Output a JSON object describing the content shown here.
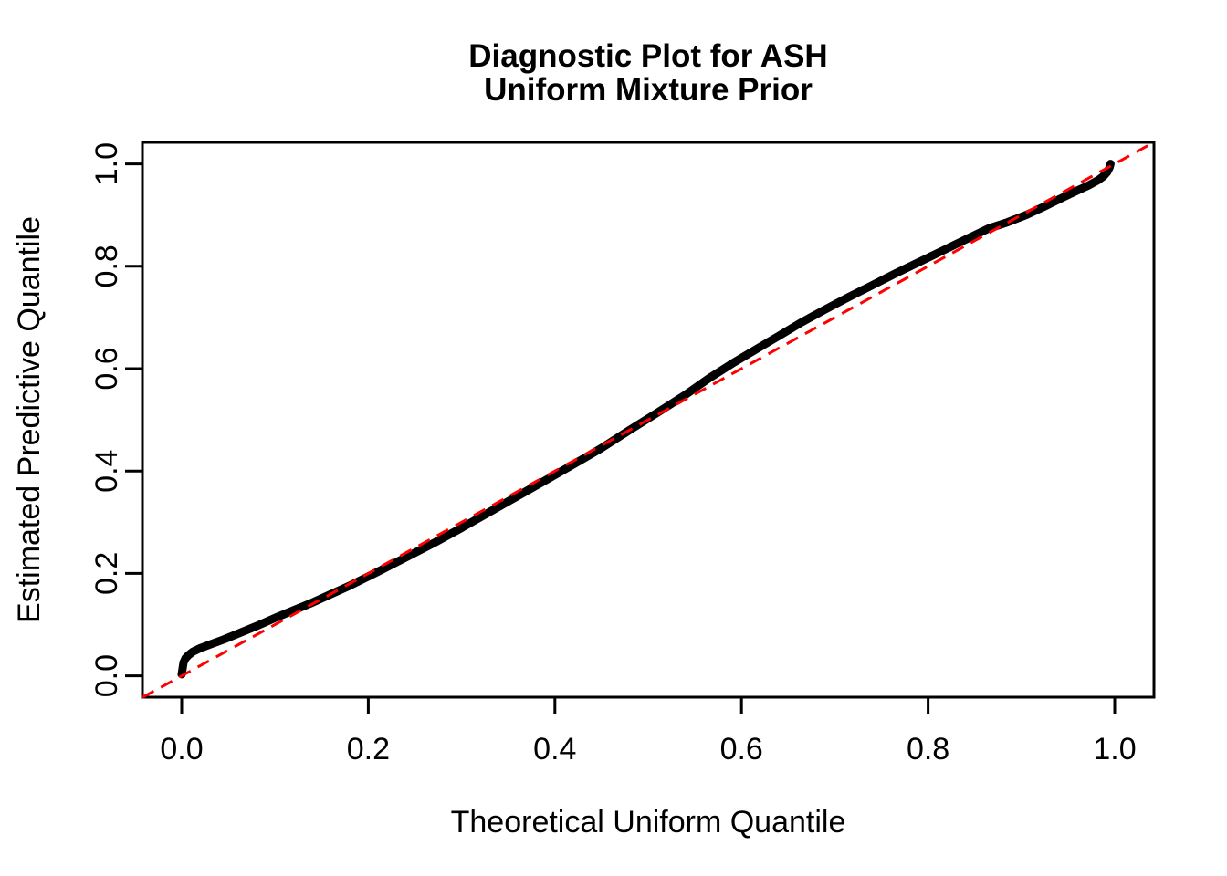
{
  "title": {
    "line1": "Diagnostic Plot for ASH",
    "line2": "Uniform Mixture Prior"
  },
  "axes": {
    "x_label": "Theoretical Uniform Quantile",
    "y_label": "Estimated Predictive Quantile",
    "x_tick_labels": [
      "0.0",
      "0.2",
      "0.4",
      "0.6",
      "0.8",
      "1.0"
    ],
    "y_tick_labels": [
      "0.0",
      "0.2",
      "0.4",
      "0.6",
      "0.8",
      "1.0"
    ]
  },
  "colors": {
    "curve": "#000000",
    "reference_line": "#FF0000",
    "frame": "#000000",
    "background": "#FFFFFF"
  },
  "chart_data": {
    "type": "line",
    "title": "Diagnostic Plot for ASH\nUniform Mixture Prior",
    "xlabel": "Theoretical Uniform Quantile",
    "ylabel": "Estimated Predictive Quantile",
    "xlim": [
      -0.042,
      1.042
    ],
    "ylim": [
      -0.042,
      1.042
    ],
    "x_ticks": [
      0.0,
      0.2,
      0.4,
      0.6,
      0.8,
      1.0
    ],
    "y_ticks": [
      0.0,
      0.2,
      0.4,
      0.6,
      0.8,
      1.0
    ],
    "grid": false,
    "legend_position": "none",
    "series": [
      {
        "name": "estimated-predictive-quantile-curve",
        "style": "solid",
        "color": "#000000",
        "line_width": 9,
        "points": [
          [
            0.0,
            0.003
          ],
          [
            0.001,
            0.014
          ],
          [
            0.002,
            0.026
          ],
          [
            0.004,
            0.034
          ],
          [
            0.007,
            0.04
          ],
          [
            0.012,
            0.047
          ],
          [
            0.02,
            0.054
          ],
          [
            0.03,
            0.061
          ],
          [
            0.045,
            0.071
          ],
          [
            0.06,
            0.082
          ],
          [
            0.08,
            0.097
          ],
          [
            0.1,
            0.113
          ],
          [
            0.12,
            0.128
          ],
          [
            0.14,
            0.143
          ],
          [
            0.157,
            0.157
          ],
          [
            0.18,
            0.176
          ],
          [
            0.21,
            0.203
          ],
          [
            0.24,
            0.231
          ],
          [
            0.27,
            0.259
          ],
          [
            0.3,
            0.289
          ],
          [
            0.33,
            0.32
          ],
          [
            0.36,
            0.351
          ],
          [
            0.39,
            0.382
          ],
          [
            0.42,
            0.413
          ],
          [
            0.45,
            0.445
          ],
          [
            0.48,
            0.48
          ],
          [
            0.51,
            0.514
          ],
          [
            0.54,
            0.549
          ],
          [
            0.565,
            0.581
          ],
          [
            0.59,
            0.61
          ],
          [
            0.615,
            0.637
          ],
          [
            0.64,
            0.664
          ],
          [
            0.665,
            0.691
          ],
          [
            0.69,
            0.716
          ],
          [
            0.715,
            0.74
          ],
          [
            0.74,
            0.763
          ],
          [
            0.765,
            0.786
          ],
          [
            0.79,
            0.808
          ],
          [
            0.815,
            0.83
          ],
          [
            0.84,
            0.852
          ],
          [
            0.865,
            0.874
          ],
          [
            0.885,
            0.886
          ],
          [
            0.905,
            0.9
          ],
          [
            0.925,
            0.917
          ],
          [
            0.945,
            0.935
          ],
          [
            0.96,
            0.948
          ],
          [
            0.972,
            0.958
          ],
          [
            0.982,
            0.968
          ],
          [
            0.988,
            0.976
          ],
          [
            0.992,
            0.984
          ],
          [
            0.9945,
            0.993
          ],
          [
            0.9955,
            1.0
          ]
        ]
      },
      {
        "name": "identity-reference-line",
        "style": "dashed",
        "color": "#FF0000",
        "line_width": 3,
        "points": [
          [
            -0.042,
            -0.042
          ],
          [
            1.042,
            1.042
          ]
        ]
      }
    ]
  }
}
